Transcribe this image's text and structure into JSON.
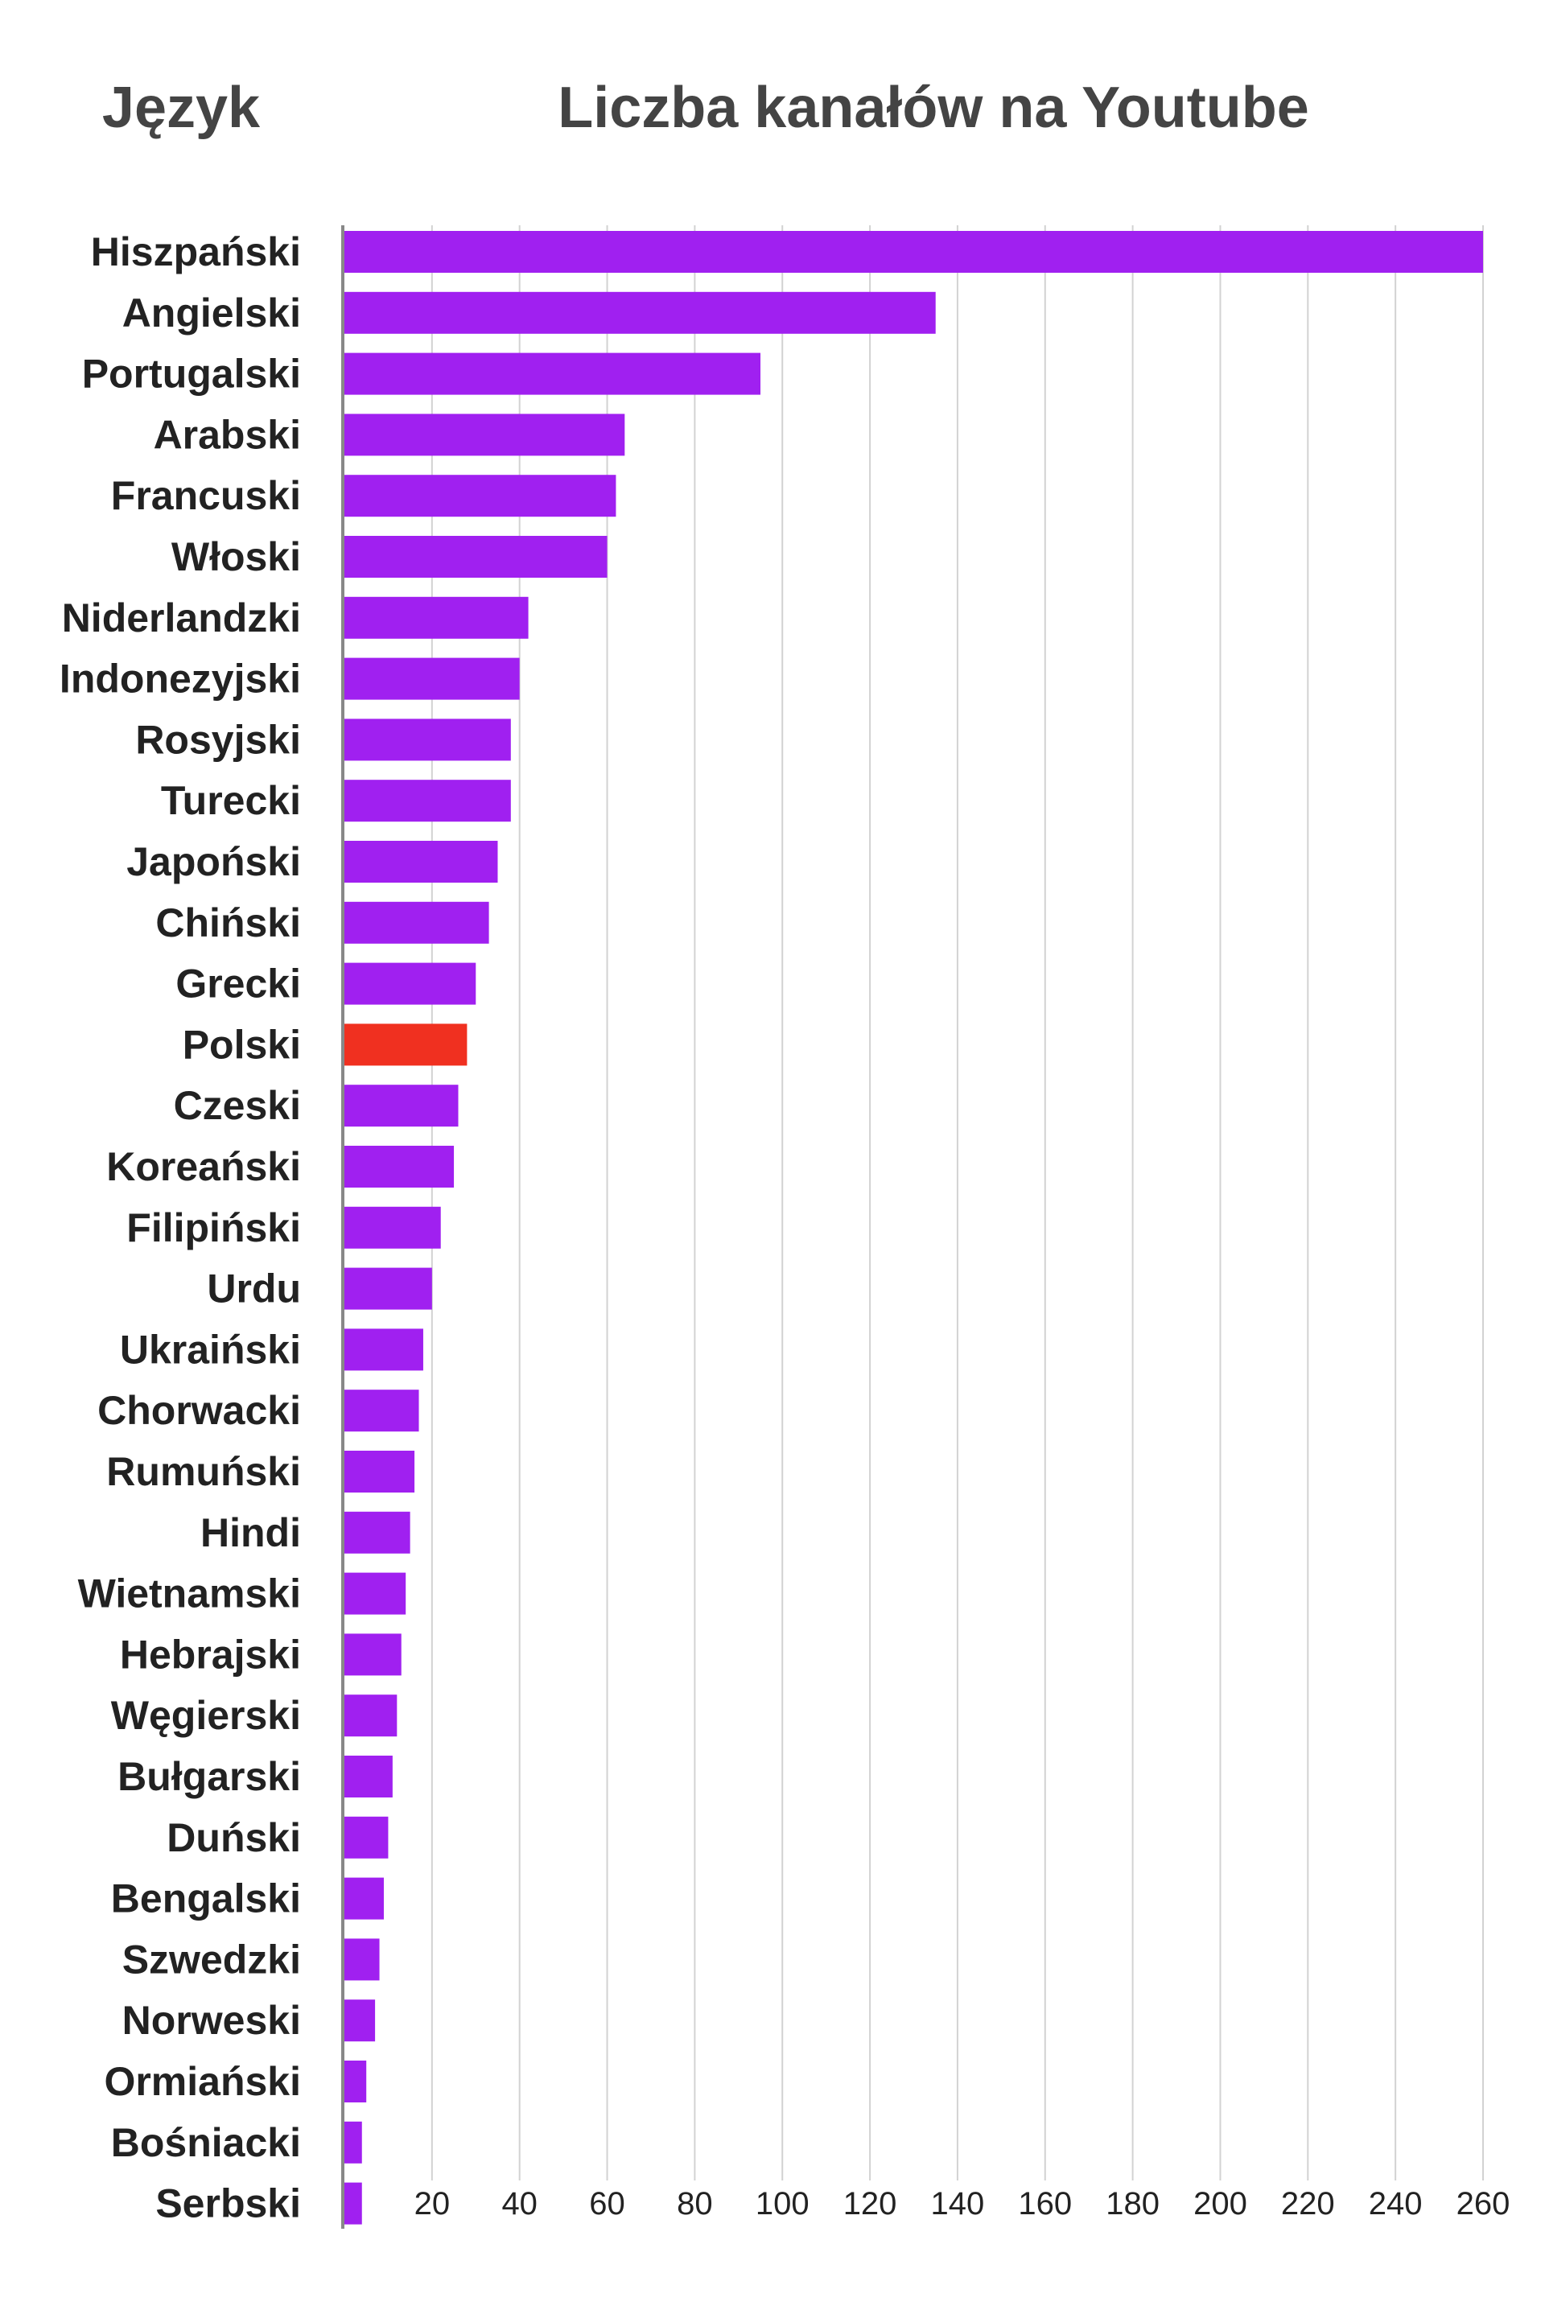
{
  "header": {
    "category_heading": "Język",
    "value_heading": "Liczba kanałów na Youtube"
  },
  "chart_data": {
    "type": "bar",
    "orientation": "horizontal",
    "categories": [
      "Hiszpański",
      "Angielski",
      "Portugalski",
      "Arabski",
      "Francuski",
      "Włoski",
      "Niderlandzki",
      "Indonezyjski",
      "Rosyjski",
      "Turecki",
      "Japoński",
      "Chiński",
      "Grecki",
      "Polski",
      "Czeski",
      "Koreański",
      "Filipiński",
      "Urdu",
      "Ukraiński",
      "Chorwacki",
      "Rumuński",
      "Hindi",
      "Wietnamski",
      "Hebrajski",
      "Węgierski",
      "Bułgarski",
      "Duński",
      "Bengalski",
      "Szwedzki",
      "Norweski",
      "Ormiański",
      "Bośniacki",
      "Serbski"
    ],
    "values": [
      260,
      135,
      95,
      64,
      62,
      60,
      42,
      40,
      38,
      38,
      35,
      33,
      30,
      28,
      26,
      25,
      22,
      20,
      18,
      17,
      16,
      15,
      14,
      13,
      12,
      11,
      10,
      9,
      8,
      7,
      5,
      4,
      4
    ],
    "xticks": [
      20,
      40,
      60,
      80,
      100,
      120,
      140,
      160,
      180,
      200,
      220,
      240,
      260
    ],
    "xlim": [
      0,
      260
    ],
    "grid": true,
    "legend": "none",
    "bar_color": "#a020f0",
    "highlight_category": "Polski",
    "highlight_color": "#f03020"
  }
}
